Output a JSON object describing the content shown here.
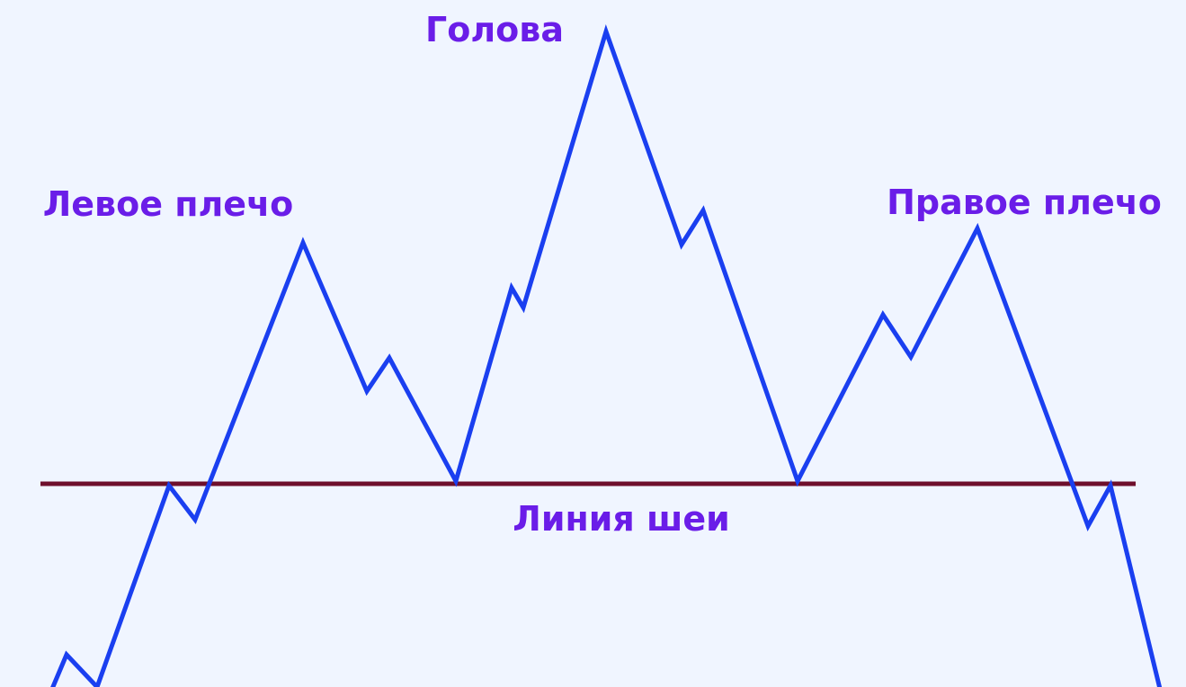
{
  "labels": {
    "head": "Голова",
    "left_shoulder": "Левое плечо",
    "right_shoulder": "Правое плечо",
    "neckline": "Линия шеи"
  },
  "colors": {
    "background": "#f0f5ff",
    "price_line": "#1a3ff0",
    "neckline": "#6e0f2c",
    "label_text": "#6a1de8"
  }
}
